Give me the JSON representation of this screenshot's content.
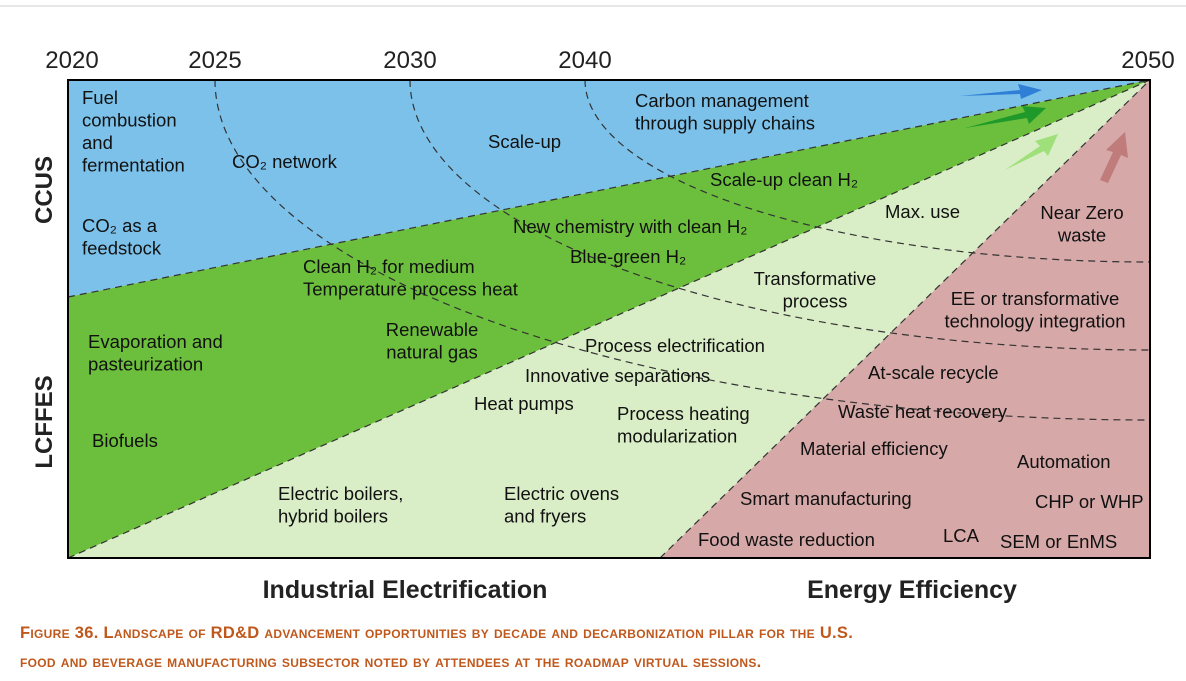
{
  "years": [
    "2020",
    "2025",
    "2030",
    "2040",
    "2050"
  ],
  "rows": [
    "CCUS",
    "LCFFES"
  ],
  "columns": [
    "Industrial Electrification",
    "Energy Efficiency"
  ],
  "labels": [
    [
      "Fuel",
      "combustion",
      "and",
      "fermentation"
    ],
    [
      "CO₂ as a",
      "feedstock"
    ],
    [
      "CO₂ network"
    ],
    [
      "Scale-up"
    ],
    [
      "Carbon management",
      "through supply chains"
    ],
    [
      "Scale-up clean H₂"
    ],
    [
      "New chemistry with clean H₂"
    ],
    [
      "Blue-green H₂"
    ],
    [
      "Clean H₂ for medium",
      "Temperature process heat"
    ],
    [
      "Renewable",
      "natural gas"
    ],
    [
      "Evaporation and",
      "pasteurization"
    ],
    [
      "Biofuels"
    ],
    [
      "Max. use"
    ],
    [
      "Transformative",
      "process"
    ],
    [
      "Process electrification"
    ],
    [
      "Innovative separations"
    ],
    [
      "Heat pumps"
    ],
    [
      "Process heating",
      "modularization"
    ],
    [
      "Electric boilers,",
      "hybrid boilers"
    ],
    [
      "Electric ovens",
      "and fryers"
    ],
    [
      "Near Zero",
      "waste"
    ],
    [
      "EE or transformative",
      "technology integration"
    ],
    [
      "At-scale recycle"
    ],
    [
      "Waste heat recovery"
    ],
    [
      "Material efficiency"
    ],
    [
      "Automation"
    ],
    [
      "Smart manufacturing"
    ],
    [
      "CHP or WHP"
    ],
    [
      "Food waste reduction"
    ],
    [
      "LCA"
    ],
    [
      "SEM or EnMS"
    ]
  ],
  "caption": [
    "Figure 36. Landscape of RD&D advancement opportunities by decade and decarbonization pillar for the U.S.",
    "food and beverage manufacturing subsector noted by attendees at the roadmap virtual sessions."
  ]
}
